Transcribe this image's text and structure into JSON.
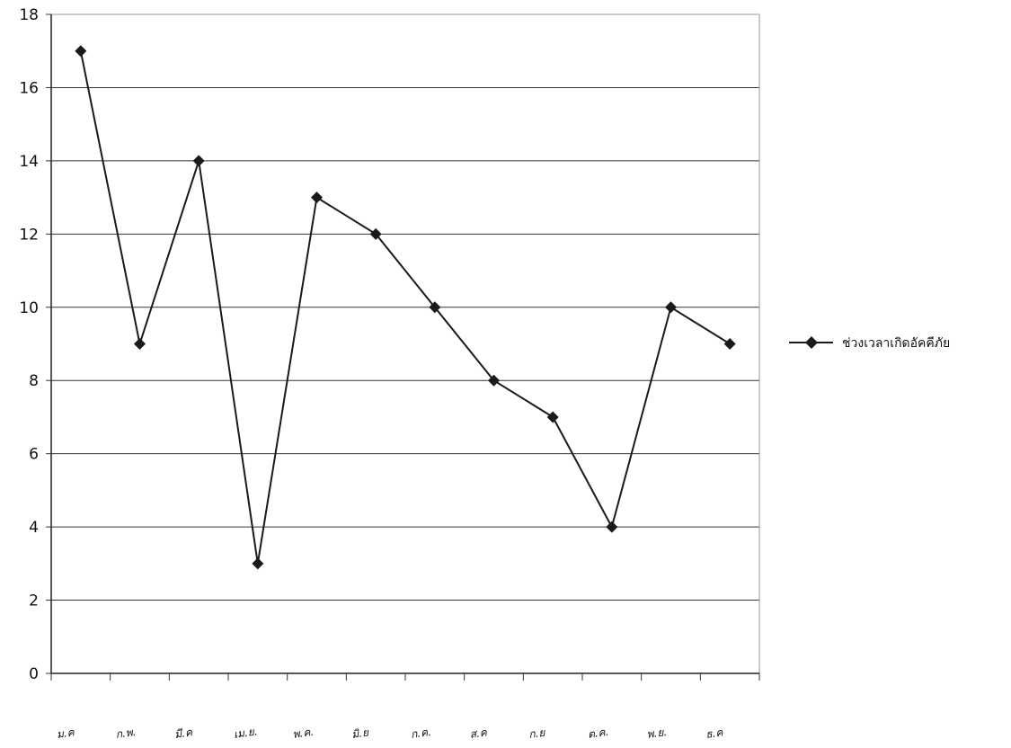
{
  "chart_data": {
    "type": "line",
    "categories": [
      "ม.ค",
      "ก.พ.",
      "มี.ค",
      "เม.ย.",
      "พ.ค.",
      "มิ.ย",
      "ก.ค.",
      "ส.ค",
      "ก.ย",
      "ต.ค.",
      "พ.ย.",
      "ธ.ค"
    ],
    "series": [
      {
        "name": "ช่วงเวลาเกิดอัคคีภัย",
        "values": [
          17,
          9,
          14,
          3,
          13,
          12,
          10,
          8,
          7,
          4,
          10,
          9
        ]
      }
    ],
    "yticks": [
      "0",
      "2",
      "4",
      "6",
      "8",
      "10",
      "12",
      "14",
      "16",
      "18"
    ],
    "ylim": [
      0,
      18
    ],
    "grid": "horizontal",
    "legend_position": "right",
    "line_color": "#1a1a1a",
    "marker": "diamond",
    "title": "",
    "xlabel": "",
    "ylabel": ""
  }
}
